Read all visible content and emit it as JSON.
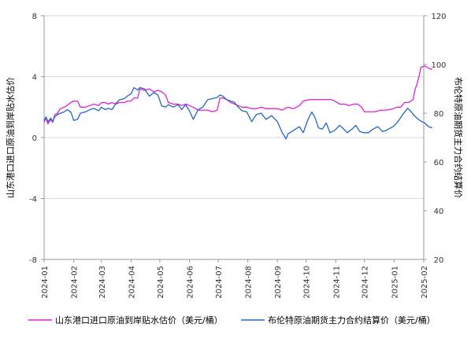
{
  "chart_data": {
    "type": "line",
    "x_ticks": [
      "2024-01",
      "2024-02",
      "2024-03",
      "2024-04",
      "2024-05",
      "2024-06",
      "2024-07",
      "2024-08",
      "2024-09",
      "2024-10",
      "2024-11",
      "2024-12",
      "2025-01",
      "2025-02"
    ],
    "y_left": {
      "label": "山东港口进口原油到岸贴水估价",
      "range": [
        -8,
        8
      ],
      "ticks": [
        "-8",
        "-4",
        "0",
        "4",
        "8"
      ]
    },
    "y_right": {
      "label": "布伦特原油期货主力合约结算价",
      "range": [
        20,
        120
      ],
      "ticks": [
        "20",
        "40",
        "60",
        "80",
        "100",
        "120"
      ]
    },
    "grid": "horizontal",
    "legend_position": "bottom",
    "series": [
      {
        "name": "山东港口进口原油到岸贴水估价（美元/桶）",
        "axis": "left",
        "color": "#e020d8",
        "points": [
          [
            "2024-01-01",
            1.0
          ],
          [
            "2024-01-03",
            1.3
          ],
          [
            "2024-01-05",
            0.9
          ],
          [
            "2024-01-08",
            1.2
          ],
          [
            "2024-01-10",
            1.0
          ],
          [
            "2024-01-12",
            1.5
          ],
          [
            "2024-01-15",
            1.6
          ],
          [
            "2024-01-18",
            1.9
          ],
          [
            "2024-01-22",
            2.0
          ],
          [
            "2024-01-25",
            2.1
          ],
          [
            "2024-01-29",
            2.3
          ],
          [
            "2024-02-01",
            2.4
          ],
          [
            "2024-02-05",
            2.4
          ],
          [
            "2024-02-08",
            2.0
          ],
          [
            "2024-02-13",
            2.0
          ],
          [
            "2024-02-18",
            2.1
          ],
          [
            "2024-02-22",
            2.2
          ],
          [
            "2024-02-27",
            2.1
          ],
          [
            "2024-03-01",
            2.3
          ],
          [
            "2024-03-05",
            2.3
          ],
          [
            "2024-03-08",
            2.2
          ],
          [
            "2024-03-12",
            2.3
          ],
          [
            "2024-03-16",
            2.2
          ],
          [
            "2024-03-20",
            2.3
          ],
          [
            "2024-03-25",
            2.3
          ],
          [
            "2024-03-28",
            2.4
          ],
          [
            "2024-04-01",
            2.4
          ],
          [
            "2024-04-04",
            2.6
          ],
          [
            "2024-04-08",
            2.6
          ],
          [
            "2024-04-10",
            3.2
          ],
          [
            "2024-04-15",
            3.1
          ],
          [
            "2024-04-20",
            3.2
          ],
          [
            "2024-04-25",
            3.0
          ],
          [
            "2024-04-29",
            3.1
          ],
          [
            "2024-05-03",
            3.0
          ],
          [
            "2024-05-07",
            2.8
          ],
          [
            "2024-05-10",
            2.3
          ],
          [
            "2024-05-15",
            2.2
          ],
          [
            "2024-05-20",
            2.2
          ],
          [
            "2024-05-24",
            2.1
          ],
          [
            "2024-05-28",
            2.2
          ],
          [
            "2024-06-01",
            2.1
          ],
          [
            "2024-06-05",
            2.0
          ],
          [
            "2024-06-10",
            1.8
          ],
          [
            "2024-06-15",
            1.8
          ],
          [
            "2024-06-20",
            1.8
          ],
          [
            "2024-06-25",
            1.7
          ],
          [
            "2024-06-30",
            1.8
          ],
          [
            "2024-07-03",
            2.6
          ],
          [
            "2024-07-06",
            2.6
          ],
          [
            "2024-07-10",
            2.5
          ],
          [
            "2024-07-14",
            2.3
          ],
          [
            "2024-07-18",
            2.2
          ],
          [
            "2024-07-22",
            2.1
          ],
          [
            "2024-07-26",
            2.0
          ],
          [
            "2024-07-31",
            2.0
          ],
          [
            "2024-08-05",
            1.9
          ],
          [
            "2024-08-10",
            1.9
          ],
          [
            "2024-08-15",
            2.0
          ],
          [
            "2024-08-20",
            1.9
          ],
          [
            "2024-08-26",
            1.9
          ],
          [
            "2024-09-01",
            1.9
          ],
          [
            "2024-09-06",
            1.8
          ],
          [
            "2024-09-12",
            2.0
          ],
          [
            "2024-09-18",
            1.9
          ],
          [
            "2024-09-24",
            2.1
          ],
          [
            "2024-09-28",
            2.4
          ],
          [
            "2024-10-05",
            2.5
          ],
          [
            "2024-10-12",
            2.5
          ],
          [
            "2024-10-20",
            2.5
          ],
          [
            "2024-10-27",
            2.5
          ],
          [
            "2024-10-31",
            2.4
          ],
          [
            "2024-11-05",
            2.2
          ],
          [
            "2024-11-10",
            2.2
          ],
          [
            "2024-11-15",
            2.1
          ],
          [
            "2024-11-20",
            2.2
          ],
          [
            "2024-11-24",
            2.2
          ],
          [
            "2024-11-28",
            2.0
          ],
          [
            "2024-12-01",
            1.7
          ],
          [
            "2024-12-06",
            1.7
          ],
          [
            "2024-12-12",
            1.7
          ],
          [
            "2024-12-18",
            1.8
          ],
          [
            "2024-12-24",
            1.8
          ],
          [
            "2024-12-31",
            1.9
          ],
          [
            "2025-01-04",
            2.0
          ],
          [
            "2025-01-08",
            2.0
          ],
          [
            "2025-01-12",
            2.3
          ],
          [
            "2025-01-16",
            2.3
          ],
          [
            "2025-01-21",
            2.5
          ],
          [
            "2025-01-23",
            3.2
          ],
          [
            "2025-01-25",
            3.5
          ],
          [
            "2025-01-27",
            4.0
          ],
          [
            "2025-01-29",
            4.6
          ],
          [
            "2025-02-02",
            4.7
          ],
          [
            "2025-02-05",
            4.6
          ],
          [
            "2025-02-08",
            4.5
          ],
          [
            "2025-02-10",
            4.5
          ]
        ]
      },
      {
        "name": "布伦特原油期货主力合约结算价（美元/桶）",
        "axis": "right",
        "color": "#2266c4",
        "points": [
          [
            "2024-01-01",
            77.0
          ],
          [
            "2024-01-03",
            78.5
          ],
          [
            "2024-01-05",
            76.5
          ],
          [
            "2024-01-08",
            78.0
          ],
          [
            "2024-01-10",
            76.5
          ],
          [
            "2024-01-12",
            78.5
          ],
          [
            "2024-01-15",
            79.5
          ],
          [
            "2024-01-18",
            80.0
          ],
          [
            "2024-01-22",
            80.5
          ],
          [
            "2024-01-25",
            81.5
          ],
          [
            "2024-01-29",
            80.5
          ],
          [
            "2024-02-01",
            77.0
          ],
          [
            "2024-02-05",
            77.5
          ],
          [
            "2024-02-08",
            80.0
          ],
          [
            "2024-02-13",
            80.5
          ],
          [
            "2024-02-18",
            81.5
          ],
          [
            "2024-02-22",
            82.0
          ],
          [
            "2024-02-27",
            81.0
          ],
          [
            "2024-03-01",
            82.5
          ],
          [
            "2024-03-05",
            81.5
          ],
          [
            "2024-03-08",
            82.0
          ],
          [
            "2024-03-12",
            81.5
          ],
          [
            "2024-03-16",
            84.0
          ],
          [
            "2024-03-20",
            85.5
          ],
          [
            "2024-03-25",
            86.0
          ],
          [
            "2024-03-28",
            87.0
          ],
          [
            "2024-04-01",
            88.0
          ],
          [
            "2024-04-04",
            90.5
          ],
          [
            "2024-04-08",
            89.5
          ],
          [
            "2024-04-10",
            90.5
          ],
          [
            "2024-04-15",
            90.0
          ],
          [
            "2024-04-20",
            87.0
          ],
          [
            "2024-04-25",
            88.5
          ],
          [
            "2024-04-29",
            87.5
          ],
          [
            "2024-05-03",
            83.0
          ],
          [
            "2024-05-07",
            82.5
          ],
          [
            "2024-05-10",
            83.5
          ],
          [
            "2024-05-15",
            82.5
          ],
          [
            "2024-05-20",
            83.5
          ],
          [
            "2024-05-24",
            81.5
          ],
          [
            "2024-05-28",
            83.5
          ],
          [
            "2024-06-01",
            81.0
          ],
          [
            "2024-06-05",
            77.5
          ],
          [
            "2024-06-10",
            81.5
          ],
          [
            "2024-06-15",
            82.5
          ],
          [
            "2024-06-20",
            85.5
          ],
          [
            "2024-06-25",
            86.0
          ],
          [
            "2024-06-30",
            86.5
          ],
          [
            "2024-07-03",
            87.5
          ],
          [
            "2024-07-06",
            87.0
          ],
          [
            "2024-07-10",
            85.5
          ],
          [
            "2024-07-14",
            85.0
          ],
          [
            "2024-07-18",
            84.5
          ],
          [
            "2024-07-22",
            82.5
          ],
          [
            "2024-07-26",
            81.0
          ],
          [
            "2024-07-31",
            80.5
          ],
          [
            "2024-08-05",
            76.5
          ],
          [
            "2024-08-10",
            79.5
          ],
          [
            "2024-08-15",
            80.0
          ],
          [
            "2024-08-20",
            77.5
          ],
          [
            "2024-08-26",
            79.0
          ],
          [
            "2024-09-01",
            76.5
          ],
          [
            "2024-09-06",
            72.0
          ],
          [
            "2024-09-10",
            69.5
          ],
          [
            "2024-09-12",
            71.5
          ],
          [
            "2024-09-18",
            73.0
          ],
          [
            "2024-09-24",
            74.5
          ],
          [
            "2024-09-28",
            72.0
          ],
          [
            "2024-10-03",
            77.5
          ],
          [
            "2024-10-07",
            80.5
          ],
          [
            "2024-10-10",
            78.5
          ],
          [
            "2024-10-14",
            74.0
          ],
          [
            "2024-10-18",
            73.5
          ],
          [
            "2024-10-22",
            76.0
          ],
          [
            "2024-10-26",
            72.0
          ],
          [
            "2024-10-31",
            73.0
          ],
          [
            "2024-11-05",
            75.0
          ],
          [
            "2024-11-08",
            74.0
          ],
          [
            "2024-11-13",
            72.0
          ],
          [
            "2024-11-18",
            73.5
          ],
          [
            "2024-11-22",
            75.0
          ],
          [
            "2024-11-26",
            72.5
          ],
          [
            "2024-11-30",
            72.0
          ],
          [
            "2024-12-05",
            72.0
          ],
          [
            "2024-12-10",
            73.5
          ],
          [
            "2024-12-15",
            74.5
          ],
          [
            "2024-12-20",
            72.5
          ],
          [
            "2024-12-24",
            73.0
          ],
          [
            "2024-12-31",
            74.5
          ],
          [
            "2025-01-05",
            76.5
          ],
          [
            "2025-01-10",
            79.5
          ],
          [
            "2025-01-15",
            82.0
          ],
          [
            "2025-01-18",
            81.0
          ],
          [
            "2025-01-22",
            79.0
          ],
          [
            "2025-01-28",
            77.0
          ],
          [
            "2025-02-02",
            76.0
          ],
          [
            "2025-02-06",
            74.5
          ],
          [
            "2025-02-10",
            74.0
          ]
        ]
      }
    ]
  }
}
